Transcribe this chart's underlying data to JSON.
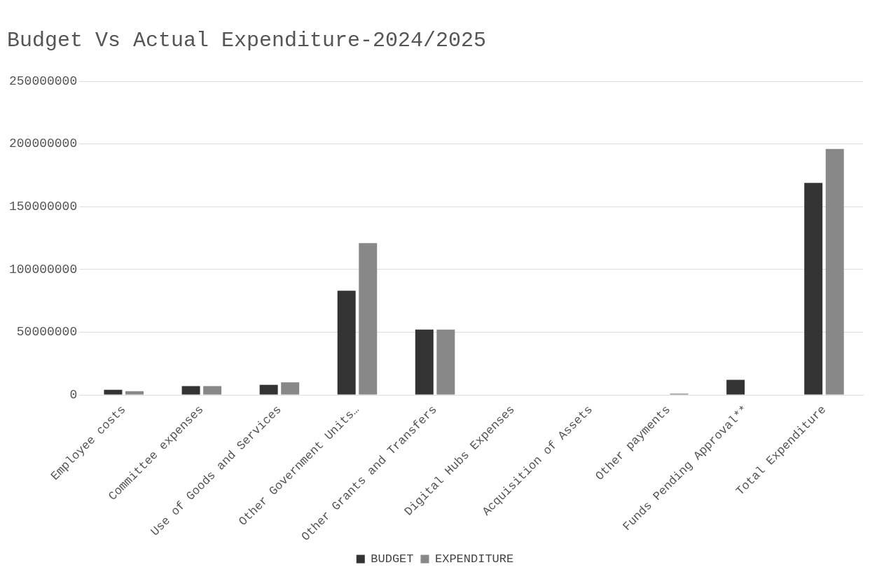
{
  "chart_data": {
    "type": "bar",
    "title": "Budget Vs Actual Expenditure-2024/2025",
    "categories": [
      "Employee costs",
      "Committee expenses",
      "Use of Goods and Services",
      "Other Government Units…",
      "Other Grants and Transfers",
      "Digital Hubs Expenses",
      "Acquisition of Assets",
      "Other payments",
      "Funds Pending Approval**",
      "Total Expenditure"
    ],
    "series": [
      {
        "name": "BUDGET",
        "color": "#333333",
        "values": [
          4000000,
          7000000,
          8000000,
          83000000,
          52000000,
          0,
          0,
          0,
          12000000,
          169000000
        ]
      },
      {
        "name": "EXPENDITURE",
        "color": "#888888",
        "values": [
          3000000,
          7000000,
          10000000,
          121000000,
          52000000,
          0,
          0,
          1000000,
          0,
          196000000
        ]
      }
    ],
    "ylim": [
      0,
      250000000
    ],
    "yticks": [
      0,
      50000000,
      100000000,
      150000000,
      200000000,
      250000000
    ],
    "grid": "y",
    "legend": "bottom"
  }
}
